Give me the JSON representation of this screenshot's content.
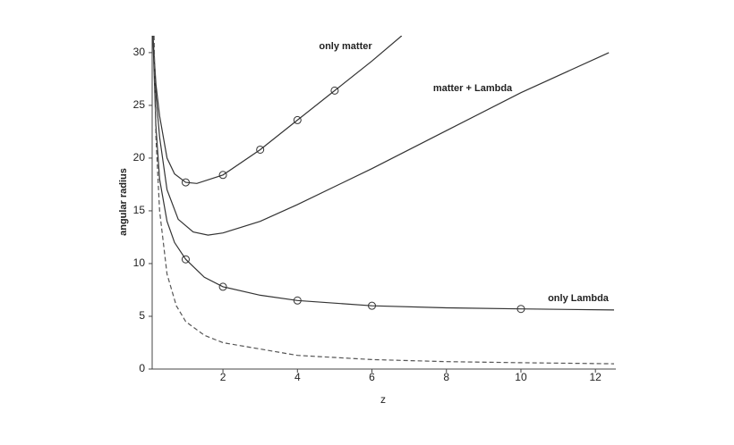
{
  "chart_data": {
    "type": "line",
    "x_label": "z",
    "y_label": "angular radius",
    "xlim": [
      0.1,
      12.5
    ],
    "ylim": [
      0,
      31.6
    ],
    "xticks": [
      2,
      4,
      6,
      8,
      10,
      12
    ],
    "yticks": [
      0,
      5,
      10,
      15,
      20,
      25,
      30
    ],
    "series": [
      {
        "name": "only matter",
        "color": "#333333",
        "style": "line",
        "x": [
          0.12,
          0.2,
          0.3,
          0.5,
          0.7,
          1.0,
          1.3,
          2,
          3,
          4,
          5,
          6,
          6.8
        ],
        "values": [
          31.6,
          27,
          24,
          20,
          18.5,
          17.7,
          17.6,
          18.4,
          20.8,
          23.6,
          26.4,
          29.2,
          31.6
        ]
      },
      {
        "name": "matter + Lambda",
        "color": "#333333",
        "style": "line",
        "x": [
          0.12,
          0.2,
          0.3,
          0.5,
          0.8,
          1.2,
          1.6,
          2,
          3,
          4,
          6,
          8,
          10,
          12.36
        ],
        "values": [
          31.6,
          26,
          22,
          17,
          14.2,
          13,
          12.7,
          12.9,
          14,
          15.6,
          19,
          22.6,
          26.2,
          30
        ]
      },
      {
        "name": "only Lambda",
        "color": "#333333",
        "style": "line",
        "x": [
          0.12,
          0.2,
          0.3,
          0.5,
          0.7,
          1,
          1.5,
          2,
          3,
          4,
          6,
          8,
          10,
          12.5
        ],
        "values": [
          31.6,
          23,
          18,
          14,
          12,
          10.4,
          8.7,
          7.8,
          7.0,
          6.5,
          6.0,
          5.8,
          5.7,
          5.6
        ]
      },
      {
        "color": "#555555",
        "style": "dashed",
        "x": [
          0.15,
          0.2,
          0.3,
          0.5,
          0.75,
          1,
          1.5,
          2,
          4,
          6,
          8,
          10,
          12.5
        ],
        "values": [
          31.6,
          22,
          15,
          9,
          6,
          4.5,
          3.2,
          2.5,
          1.3,
          0.9,
          0.7,
          0.6,
          0.5
        ]
      },
      {
        "color": "#333333",
        "style": "markers",
        "x": [
          1,
          2,
          3,
          4,
          5
        ],
        "values": [
          17.7,
          18.4,
          20.8,
          23.6,
          26.4
        ]
      },
      {
        "color": "#333333",
        "style": "markers",
        "x": [
          1,
          2,
          4,
          6,
          10
        ],
        "values": [
          10.4,
          7.8,
          6.5,
          6.0,
          5.7
        ]
      }
    ]
  }
}
